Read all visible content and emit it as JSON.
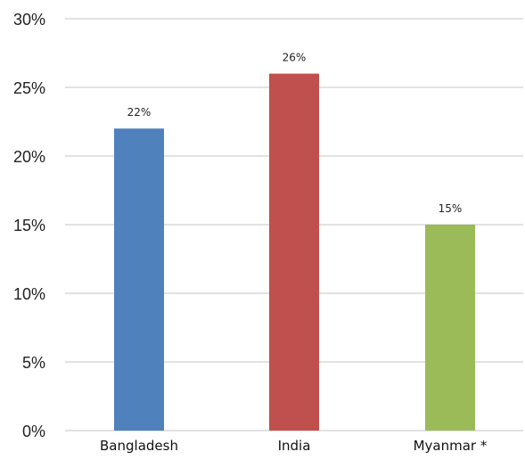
{
  "chart_data": {
    "type": "bar",
    "title": "",
    "xlabel": "",
    "ylabel": "",
    "categories": [
      "Bangladesh",
      "India",
      "Myanmar *"
    ],
    "values": [
      22,
      26,
      15
    ],
    "value_labels": [
      "22%",
      "26%",
      "15%"
    ],
    "bar_colors": [
      "#4f81bd",
      "#c0504d",
      "#9bbb59"
    ],
    "ylim": [
      0,
      30
    ],
    "y_ticks": [
      {
        "value": 0,
        "label": "0%"
      },
      {
        "value": 5,
        "label": "5%"
      },
      {
        "value": 10,
        "label": "10%"
      },
      {
        "value": 15,
        "label": "15%"
      },
      {
        "value": 20,
        "label": "20%"
      },
      {
        "value": 25,
        "label": "25%"
      },
      {
        "value": 30,
        "label": "30%"
      }
    ],
    "grid": true,
    "legend": "none",
    "grid_color": "#d9d9d9"
  }
}
